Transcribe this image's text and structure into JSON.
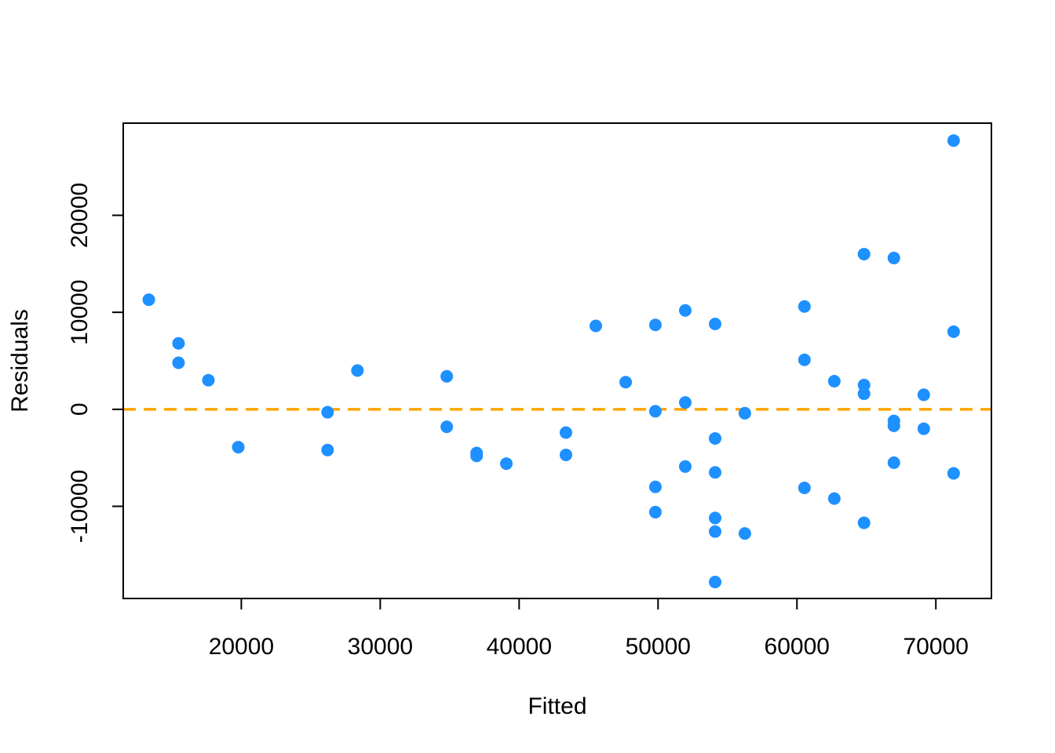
{
  "chart_data": {
    "type": "scatter",
    "title": "",
    "xlabel": "Fitted",
    "ylabel": "Residuals",
    "xlim": [
      11500,
      74000
    ],
    "ylim": [
      -19500,
      29500
    ],
    "x_ticks": [
      20000,
      30000,
      40000,
      50000,
      60000,
      70000
    ],
    "x_tick_labels": [
      "20000",
      "30000",
      "40000",
      "50000",
      "60000",
      "70000"
    ],
    "y_ticks": [
      -10000,
      0,
      10000,
      20000
    ],
    "y_tick_labels": [
      "-10000",
      "0",
      "10000",
      "20000"
    ],
    "grid": false,
    "point_color": "#1E90FF",
    "reference_line": {
      "y": 0,
      "color": "#FFA500",
      "style": "dashed"
    },
    "x": [
      13340,
      15480,
      15480,
      17630,
      19780,
      26210,
      26210,
      28360,
      34790,
      34790,
      36940,
      36940,
      39080,
      43370,
      43370,
      45520,
      47670,
      49810,
      49810,
      49810,
      49810,
      51960,
      51960,
      51960,
      54110,
      54110,
      54110,
      54110,
      54110,
      54110,
      56250,
      56250,
      60540,
      60540,
      60540,
      62690,
      62690,
      64830,
      64830,
      64830,
      64830,
      66980,
      66980,
      66980,
      66980,
      69130,
      69130,
      71280,
      71280,
      71280
    ],
    "y": [
      11300,
      6800,
      4800,
      3000,
      -3900,
      -300,
      -4200,
      4000,
      3400,
      -1800,
      -4500,
      -4800,
      -5600,
      -2400,
      -4700,
      8600,
      2800,
      8700,
      -200,
      -8000,
      -10600,
      10200,
      700,
      -5900,
      8800,
      -3000,
      -6500,
      -11200,
      -12600,
      -17800,
      -400,
      -12800,
      10600,
      5100,
      -8100,
      2900,
      -9200,
      16000,
      2500,
      1600,
      -11700,
      15600,
      -1200,
      -1700,
      -5500,
      1500,
      -2000,
      27700,
      8000,
      -6600
    ]
  }
}
